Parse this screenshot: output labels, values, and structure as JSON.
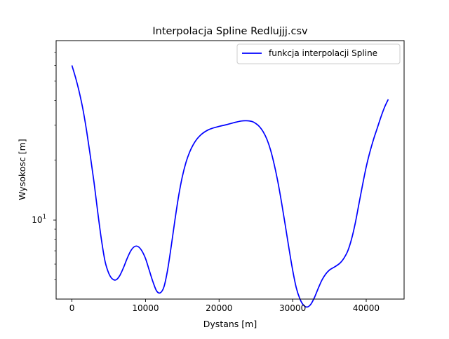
{
  "chart_data": {
    "type": "line",
    "title": "Interpolacja Spline Redlujjj.csv",
    "xlabel": "Dystans [m]",
    "ylabel": "Wysokosc [m]",
    "xlim": [
      -2150,
      45150
    ],
    "ylim": [
      4.0,
      80.0
    ],
    "yscale": "log",
    "x_ticks": [
      0,
      10000,
      20000,
      30000,
      40000
    ],
    "x_tick_labels": [
      "0",
      "10000",
      "20000",
      "30000",
      "40000"
    ],
    "y_major_ticks": [
      10
    ],
    "y_major_tick_labels": [
      "10"
    ],
    "y_minor_ticks": [
      5,
      6,
      7,
      8,
      9,
      20,
      30,
      40,
      50,
      60,
      70
    ],
    "grid": false,
    "legend_position": "top-right",
    "series": [
      {
        "name": "funkcja interpolacji Spline",
        "color": "#0000ff",
        "x": [
          0,
          500,
          1000,
          1500,
          2000,
          2500,
          3000,
          3500,
          4000,
          4500,
          5000,
          5500,
          6000,
          6500,
          7000,
          7500,
          8000,
          8500,
          9000,
          9500,
          10000,
          10500,
          11000,
          11500,
          12000,
          12500,
          13000,
          13500,
          14000,
          14500,
          15000,
          15500,
          16000,
          16500,
          17000,
          17500,
          18000,
          18500,
          19000,
          20000,
          21000,
          22000,
          23000,
          23700,
          24500,
          25000,
          25500,
          26000,
          26500,
          27000,
          27500,
          28000,
          28500,
          29000,
          29500,
          30000,
          30500,
          31000,
          31500,
          32000,
          32500,
          33000,
          33500,
          34000,
          34500,
          35000,
          35500,
          36000,
          36500,
          37000,
          37500,
          38000,
          38500,
          39000,
          39500,
          40000,
          40500,
          41000,
          41500,
          42000,
          42500,
          43000
        ],
        "y": [
          60.0,
          52.0,
          44.0,
          36.0,
          28.0,
          21.0,
          15.5,
          11.0,
          8.0,
          6.2,
          5.4,
          5.05,
          5.0,
          5.25,
          5.75,
          6.4,
          7.0,
          7.35,
          7.35,
          7.0,
          6.4,
          5.6,
          4.9,
          4.4,
          4.3,
          4.6,
          5.6,
          7.4,
          10.0,
          13.2,
          16.5,
          19.5,
          22.0,
          24.0,
          25.6,
          26.8,
          27.7,
          28.4,
          28.9,
          29.6,
          30.2,
          30.9,
          31.5,
          31.6,
          31.3,
          30.6,
          29.5,
          27.8,
          25.5,
          22.5,
          19.0,
          15.5,
          12.2,
          9.4,
          7.2,
          5.6,
          4.55,
          4.0,
          3.72,
          3.65,
          3.78,
          4.1,
          4.55,
          5.0,
          5.35,
          5.6,
          5.75,
          5.9,
          6.1,
          6.45,
          7.0,
          8.0,
          9.6,
          12.0,
          15.0,
          18.5,
          22.0,
          25.5,
          29.0,
          33.0,
          37.0,
          40.5
        ]
      }
    ]
  }
}
